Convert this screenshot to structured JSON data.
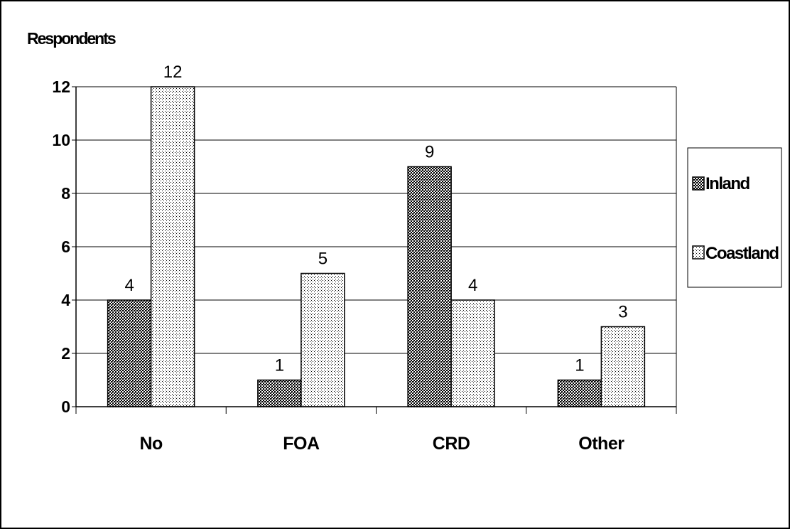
{
  "chart_data": {
    "type": "bar",
    "ylabel": "Respondents",
    "categories": [
      "No",
      "FOA",
      "CRD",
      "Other"
    ],
    "series": [
      {
        "name": "Inland",
        "values": [
          4,
          1,
          9,
          1
        ]
      },
      {
        "name": "Coastland",
        "values": [
          12,
          5,
          4,
          3
        ]
      }
    ],
    "ylim": [
      0,
      12
    ],
    "yticks": [
      0,
      2,
      4,
      6,
      8,
      10,
      12
    ],
    "grid": true,
    "legend": "right",
    "data_labels": true
  },
  "colors": {
    "inland_fill": "#8a8a8a",
    "coastland_fill": "#e8e8e8",
    "grid": "#000000",
    "border": "#000000"
  }
}
